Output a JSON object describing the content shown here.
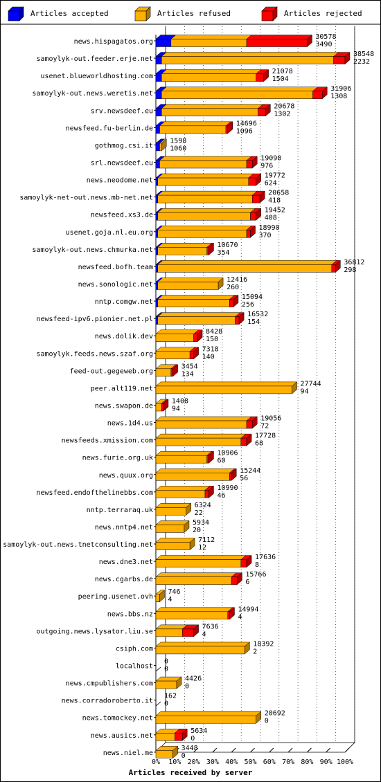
{
  "chart_data": {
    "type": "bar",
    "orientation": "horizontal",
    "stacked": true,
    "style": "3d",
    "xlabel": "Articles received by server",
    "xticks": [
      "0%",
      "10%",
      "20%",
      "30%",
      "40%",
      "50%",
      "60%",
      "70%",
      "80%",
      "90%",
      "100%"
    ],
    "legend_position": "top",
    "series": [
      {
        "name": "Articles accepted",
        "color": "#0000ff",
        "dark": "#0000a8"
      },
      {
        "name": "Articles refused",
        "color": "#ffb000",
        "dark": "#b07800"
      },
      {
        "name": "Articles rejected",
        "color": "#ff0000",
        "dark": "#b00000"
      }
    ],
    "servers": [
      {
        "name": "news.hispagatos.org",
        "total": 30578,
        "refused_label": 3490,
        "pct": [
          8,
          40,
          32
        ]
      },
      {
        "name": "samoylyk-out.feeder.erje.net",
        "total": 38548,
        "refused_label": 2232,
        "pct": [
          3,
          91,
          6
        ]
      },
      {
        "name": "usenet.blueworldhosting.com",
        "total": 21078,
        "refused_label": 1504,
        "pct": [
          3,
          50,
          4
        ]
      },
      {
        "name": "samoylyk-out.news.weretis.net",
        "total": 31906,
        "refused_label": 1308,
        "pct": [
          3,
          80,
          5
        ]
      },
      {
        "name": "srv.newsdeef.eu",
        "total": 20678,
        "refused_label": 1302,
        "pct": [
          3,
          51,
          4
        ]
      },
      {
        "name": "newsfeed.fu-berlin.de",
        "total": 14696,
        "refused_label": 1096,
        "pct": [
          2,
          35,
          1
        ]
      },
      {
        "name": "gothmog.csi.it",
        "total": 1598,
        "refused_label": 1060,
        "pct": [
          2,
          1,
          0
        ]
      },
      {
        "name": "srl.newsdeef.eu",
        "total": 19090,
        "refused_label": 976,
        "pct": [
          2,
          46,
          3
        ]
      },
      {
        "name": "news.neodome.net",
        "total": 19772,
        "refused_label": 624,
        "pct": [
          1,
          48,
          4
        ]
      },
      {
        "name": "samoylyk-net-out.news.mb-net.net",
        "total": 20658,
        "refused_label": 418,
        "pct": [
          1,
          50,
          4
        ]
      },
      {
        "name": "newsfeed.xs3.de",
        "total": 19452,
        "refused_label": 408,
        "pct": [
          1,
          49,
          3
        ]
      },
      {
        "name": "usenet.goja.nl.eu.org",
        "total": 18990,
        "refused_label": 370,
        "pct": [
          1,
          47,
          2
        ]
      },
      {
        "name": "samoylyk-out.news.chmurka.net",
        "total": 10670,
        "refused_label": 354,
        "pct": [
          1,
          26,
          1
        ]
      },
      {
        "name": "newsfeed.bofh.team",
        "total": 36812,
        "refused_label": 298,
        "pct": [
          1,
          92,
          2
        ]
      },
      {
        "name": "news.sonologic.net",
        "total": 12416,
        "refused_label": 260,
        "pct": [
          1,
          32,
          0
        ]
      },
      {
        "name": "nntp.comgw.net",
        "total": 15094,
        "refused_label": 256,
        "pct": [
          1,
          38,
          2
        ]
      },
      {
        "name": "newsfeed-ipv6.pionier.net.pl",
        "total": 16532,
        "refused_label": 154,
        "pct": [
          1,
          41,
          2
        ]
      },
      {
        "name": "news.dolik.dev",
        "total": 8428,
        "refused_label": 150,
        "pct": [
          0,
          20,
          2
        ]
      },
      {
        "name": "samoylyk.feeds.news.szaf.org",
        "total": 7318,
        "refused_label": 140,
        "pct": [
          0,
          18,
          2
        ]
      },
      {
        "name": "feed-out.gegeweb.org",
        "total": 3454,
        "refused_label": 134,
        "pct": [
          0,
          8,
          1
        ]
      },
      {
        "name": "peer.alt119.net",
        "total": 27744,
        "refused_label": 94,
        "pct": [
          0,
          72,
          0
        ]
      },
      {
        "name": "news.swapon.de",
        "total": 1408,
        "refused_label": 94,
        "pct": [
          0,
          3,
          1
        ]
      },
      {
        "name": "news.1d4.us",
        "total": 19056,
        "refused_label": 72,
        "pct": [
          0,
          48,
          3
        ]
      },
      {
        "name": "newsfeeds.xmission.com",
        "total": 17728,
        "refused_label": 68,
        "pct": [
          0,
          45,
          3
        ]
      },
      {
        "name": "news.furie.org.uk",
        "total": 10906,
        "refused_label": 60,
        "pct": [
          0,
          27,
          1
        ]
      },
      {
        "name": "news.quux.org",
        "total": 15244,
        "refused_label": 56,
        "pct": [
          0,
          39,
          1
        ]
      },
      {
        "name": "newsfeed.endofthelinebbs.com",
        "total": 10990,
        "refused_label": 46,
        "pct": [
          0,
          26,
          2
        ]
      },
      {
        "name": "nntp.terraraq.uk",
        "total": 6324,
        "refused_label": 22,
        "pct": [
          0,
          16,
          0
        ]
      },
      {
        "name": "news.nntp4.net",
        "total": 5934,
        "refused_label": 20,
        "pct": [
          0,
          15,
          0
        ]
      },
      {
        "name": "samoylyk-out.news.tnetconsulting.net",
        "total": 7112,
        "refused_label": 12,
        "pct": [
          0,
          18,
          0
        ]
      },
      {
        "name": "news.dne3.net",
        "total": 17636,
        "refused_label": 8,
        "pct": [
          0,
          45,
          3
        ]
      },
      {
        "name": "news.cgarbs.de",
        "total": 15766,
        "refused_label": 6,
        "pct": [
          0,
          40,
          3
        ]
      },
      {
        "name": "peering.usenet.ovh",
        "total": 746,
        "refused_label": 4,
        "pct": [
          0,
          2,
          0
        ]
      },
      {
        "name": "news.bbs.nz",
        "total": 14994,
        "refused_label": 4,
        "pct": [
          0,
          38,
          1
        ]
      },
      {
        "name": "outgoing.news.lysator.liu.se",
        "total": 7636,
        "refused_label": 4,
        "pct": [
          0,
          14,
          6
        ]
      },
      {
        "name": "csiph.com",
        "total": 18392,
        "refused_label": 2,
        "pct": [
          0,
          47,
          0
        ]
      },
      {
        "name": "localhost",
        "total": 0,
        "refused_label": 0,
        "pct": [
          0,
          0,
          0
        ]
      },
      {
        "name": "news.cmpublishers.com",
        "total": 4426,
        "refused_label": 0,
        "pct": [
          0,
          11,
          0
        ]
      },
      {
        "name": "news.corradoroberto.it",
        "total": 162,
        "refused_label": 0,
        "pct": [
          0,
          0,
          0
        ]
      },
      {
        "name": "news.tomockey.net",
        "total": 20692,
        "refused_label": 0,
        "pct": [
          0,
          53,
          0
        ]
      },
      {
        "name": "news.ausics.net",
        "total": 5634,
        "refused_label": 0,
        "pct": [
          0,
          10,
          4
        ]
      },
      {
        "name": "news.niel.me",
        "total": 3448,
        "refused_label": 0,
        "pct": [
          0,
          9,
          0
        ]
      }
    ]
  }
}
